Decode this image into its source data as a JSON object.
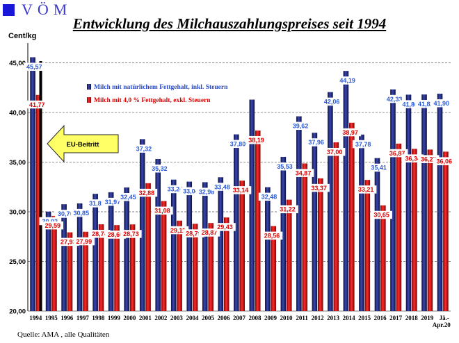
{
  "header": {
    "logo_text": "VÖM",
    "logo_color": "#1a16d8"
  },
  "title": "Entwicklung des Milchauszahlungspreises seit 1994",
  "y_unit": "Cent/kg",
  "source": "Quelle: AMA , alle Qualitäten",
  "chart_data": {
    "type": "bar",
    "categories": [
      "1994",
      "1995",
      "1996",
      "1997",
      "1998",
      "1999",
      "2000",
      "2001",
      "2002",
      "2003",
      "2004",
      "2005",
      "2006",
      "2007",
      "2008",
      "2009",
      "2010",
      "2011",
      "2012",
      "2013",
      "2014",
      "2015",
      "2016",
      "2017",
      "2018",
      "2019",
      "Jä.-Apr.20"
    ],
    "series": [
      {
        "name": "Milch mit natürlichem Fettgehalt, inkl. Steuern",
        "color": "#1f2a80",
        "values": [
          45.57,
          30.02,
          30.76,
          30.85,
          31.81,
          31.97,
          32.45,
          37.32,
          35.32,
          33.24,
          33.04,
          32.98,
          33.48,
          37.8,
          41.3,
          32.48,
          35.53,
          39.62,
          37.96,
          42.06,
          44.19,
          37.78,
          35.41,
          42.33,
          41.8,
          41.82,
          41.9
        ]
      },
      {
        "name": "Milch mit 4,0 % Fettgehalt, exkl. Steuern",
        "color": "#cc1111",
        "values": [
          41.77,
          29.59,
          27.93,
          27.99,
          28.74,
          28.66,
          28.73,
          32.88,
          31.08,
          29.11,
          28.79,
          28.87,
          29.43,
          33.14,
          38.19,
          28.56,
          31.22,
          34.87,
          33.37,
          37.0,
          38.97,
          33.21,
          30.65,
          36.87,
          36.34,
          36.27,
          36.06
        ]
      }
    ],
    "labels_blue": [
      "45,57",
      "30,02",
      "30,76",
      "30,85",
      "31,81",
      "31,97",
      "32,45",
      "37,32",
      "35,32",
      "33,24",
      "33,04",
      "32,98",
      "33,48",
      "37,80",
      "",
      "32,48",
      "35,53",
      "39,62",
      "37,96",
      "42,06",
      "44,19",
      "37,78",
      "35,41",
      "42,33",
      "41,80",
      "41,82",
      "41,90"
    ],
    "labels_red": [
      "41,77",
      "29,59",
      "27,93",
      "27,99",
      "28,74",
      "28,66",
      "28,73",
      "32,88",
      "31,08",
      "29,11",
      "28,79",
      "28,87",
      "29,43",
      "33,14",
      "38,19",
      "28,56",
      "31,22",
      "34,87",
      "33,37",
      "37,00",
      "38,97",
      "33,21",
      "30,65",
      "36,87",
      "36,34",
      "36,27",
      "36,06"
    ],
    "ylim": [
      20,
      47
    ],
    "yticks": [
      "20,00",
      "25,00",
      "30,00",
      "35,00",
      "40,00",
      "45,00"
    ],
    "grid": true,
    "legend_placement": "top-center",
    "annotation": {
      "text": "EU-Beitritt",
      "marker": "vertical line after 1994"
    }
  }
}
